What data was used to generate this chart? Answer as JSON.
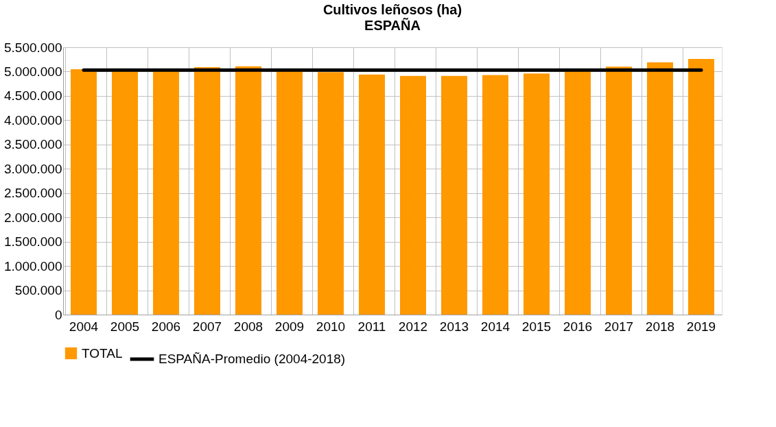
{
  "chart_data": {
    "type": "bar",
    "title": "Cultivos leñosos (ha)",
    "subtitle": "ESPAÑA",
    "categories": [
      "2004",
      "2005",
      "2006",
      "2007",
      "2008",
      "2009",
      "2010",
      "2011",
      "2012",
      "2013",
      "2014",
      "2015",
      "2016",
      "2017",
      "2018",
      "2019"
    ],
    "series": [
      {
        "name": "TOTAL",
        "color": "#ff9900",
        "values": [
          5050000,
          5030000,
          5020000,
          5090000,
          5110000,
          5020000,
          4990000,
          4940000,
          4910000,
          4910000,
          4930000,
          4960000,
          5020000,
          5100000,
          5190000,
          5260000
        ]
      },
      {
        "name": "ESPAÑA-Promedio (2004-2018)",
        "type": "line",
        "color": "#000000",
        "values": [
          5030000,
          5030000,
          5030000,
          5030000,
          5030000,
          5030000,
          5030000,
          5030000,
          5030000,
          5030000,
          5030000,
          5030000,
          5030000,
          5030000,
          5030000,
          5030000
        ]
      }
    ],
    "ylim": [
      0,
      5500000
    ],
    "yticks": [
      {
        "value": 0,
        "label": "0"
      },
      {
        "value": 500000,
        "label": "500.000"
      },
      {
        "value": 1000000,
        "label": "1.000.000"
      },
      {
        "value": 1500000,
        "label": "1.500.000"
      },
      {
        "value": 2000000,
        "label": "2.000.000"
      },
      {
        "value": 2500000,
        "label": "2.500.000"
      },
      {
        "value": 3000000,
        "label": "3.000.000"
      },
      {
        "value": 3500000,
        "label": "3.500.000"
      },
      {
        "value": 4000000,
        "label": "4.000.000"
      },
      {
        "value": 4500000,
        "label": "4.500.000"
      },
      {
        "value": 5000000,
        "label": "5.000.000"
      },
      {
        "value": 5500000,
        "label": "5.500.000"
      }
    ],
    "grid": true,
    "legend": "bottom",
    "marker": "none",
    "line_style": "solid"
  }
}
